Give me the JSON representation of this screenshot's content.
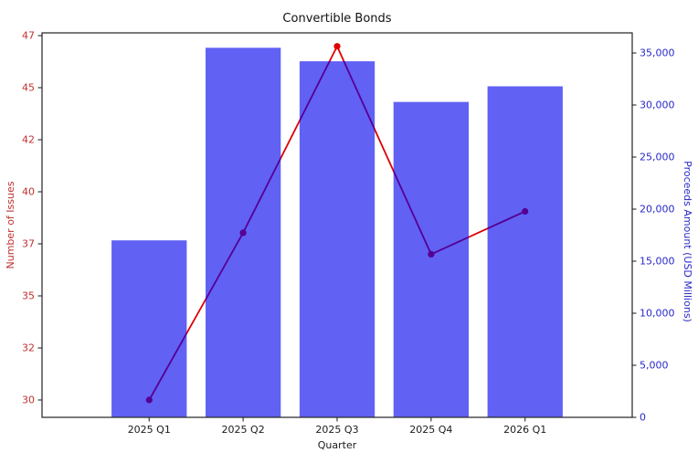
{
  "chart_data": {
    "type": "combo",
    "title": "Convertible Bonds",
    "categories": [
      "2025 Q1",
      "2025 Q2",
      "2025 Q3",
      "2025 Q4",
      "2026 Q1"
    ],
    "xlabel": "Quarter",
    "legend_position": "none",
    "grid": false,
    "series": [
      {
        "name": "Number of Issues",
        "chart": "line",
        "axis": "left",
        "values": [
          30,
          37.8,
          46.5,
          36.8,
          38.8
        ],
        "color": "#dd0000",
        "marker": "circle"
      },
      {
        "name": "Proceeds Amount (USD Millions)",
        "chart": "bar",
        "axis": "right",
        "values": [
          17000,
          35500,
          34200,
          30300,
          31800
        ],
        "color": "#0000ee",
        "opacity": 0.62,
        "bar_width_frac": 0.8
      }
    ],
    "left_axis": {
      "label": "Number of Issues",
      "text_color": "#c03030",
      "min": 30,
      "max": 47,
      "tick_labels": [
        "30",
        "32",
        "35",
        "37",
        "40",
        "42",
        "45",
        "47"
      ]
    },
    "right_axis": {
      "label": "Proceeds Amount (USD Millions)",
      "text_color": "#2828c8",
      "min": 0,
      "max": 35000,
      "tick_labels": [
        "0",
        "5,000",
        "10,000",
        "15,000",
        "20,000",
        "25,000",
        "30,000",
        "35,000"
      ]
    },
    "x_axis": {
      "label": "Quarter",
      "text_color": "#1a1a1a"
    }
  }
}
